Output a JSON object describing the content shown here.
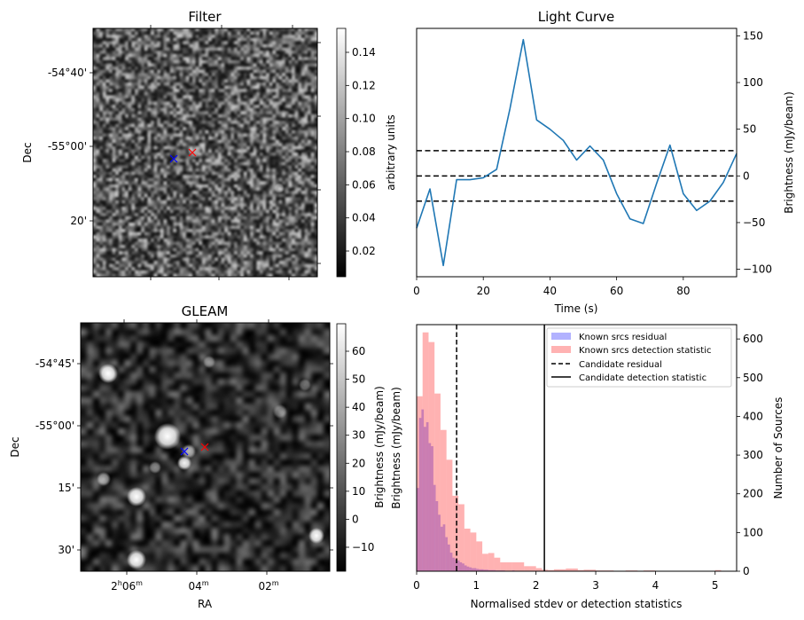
{
  "chart_data": [
    {
      "type": "heatmap",
      "title": "Filter",
      "ylabel": "Dec",
      "yticks": [
        "-54°40'",
        "-55°00'",
        "20'"
      ],
      "colorbar": {
        "label": "arbitrary units",
        "range": [
          0.005,
          0.153
        ],
        "ticks": [
          "0.02",
          "0.04",
          "0.06",
          "0.08",
          "0.10",
          "0.12",
          "0.14"
        ],
        "tick_values": [
          0.02,
          0.04,
          0.06,
          0.08,
          0.1,
          0.12,
          0.14
        ]
      },
      "markers": [
        {
          "color": "#0000ff",
          "symbol": "x"
        },
        {
          "color": "#ff0000",
          "symbol": "x"
        }
      ]
    },
    {
      "type": "line",
      "title": "Light Curve",
      "xlabel": "Time (s)",
      "ylabel": "Brightness (mJy/beam)",
      "xlim": [
        0,
        96
      ],
      "ylim": [
        -108,
        158
      ],
      "xticks": [
        "0",
        "20",
        "40",
        "60",
        "80"
      ],
      "xtick_values": [
        0,
        20,
        40,
        60,
        80
      ],
      "yticks": [
        "−100",
        "−50",
        "0",
        "50",
        "100",
        "150"
      ],
      "ytick_values": [
        -100,
        -50,
        0,
        50,
        100,
        150
      ],
      "x": [
        0,
        4,
        8,
        12,
        16,
        20,
        24,
        28,
        32,
        36,
        40,
        44,
        48,
        52,
        56,
        60,
        64,
        68,
        72,
        76,
        80,
        84,
        88,
        92,
        96
      ],
      "y": [
        -56,
        -14,
        -96,
        -4,
        -4,
        -2,
        7,
        72,
        146,
        60,
        50,
        38,
        17,
        32,
        17,
        -19,
        -46,
        -51,
        -8,
        33,
        -19,
        -37,
        -27,
        -7,
        24
      ],
      "series_color": "#1f77b4",
      "hlines": [
        27,
        0,
        -27
      ]
    },
    {
      "type": "heatmap",
      "title": "GLEAM",
      "xlabel": "RA",
      "ylabel": "Dec",
      "xticks": [
        {
          "h": "2",
          "hs": "h",
          "m": "06",
          "ms": "m"
        },
        {
          "h": "",
          "hs": "",
          "m": "04",
          "ms": "m"
        },
        {
          "h": "",
          "hs": "",
          "m": "02",
          "ms": "m"
        }
      ],
      "yticks": [
        "-54°45'",
        "-55°00'",
        "15'",
        "30'"
      ],
      "colorbar": {
        "label": "Brightness (mJy/beam)",
        "range": [
          -18.5,
          69.8
        ],
        "ticks": [
          "−10",
          "0",
          "10",
          "20",
          "30",
          "40",
          "50",
          "60"
        ],
        "tick_values": [
          -10,
          0,
          10,
          20,
          30,
          40,
          50,
          60
        ]
      },
      "markers": [
        {
          "color": "#0000ff",
          "symbol": "x"
        },
        {
          "color": "#ff0000",
          "symbol": "x"
        }
      ]
    },
    {
      "type": "bar",
      "subtype": "histogram",
      "xlabel": "Normalised stdev or detection statistics",
      "ylabel_left": "Brightness (mJy/beam)",
      "ylabel_right": "Number of Sources",
      "xlim": [
        0,
        5.36
      ],
      "ylim": [
        0,
        637
      ],
      "xticks": [
        "0",
        "1",
        "2",
        "3",
        "4",
        "5"
      ],
      "xtick_values": [
        0,
        1,
        2,
        3,
        4,
        5
      ],
      "yticks": [
        "0",
        "100",
        "200",
        "300",
        "400",
        "500",
        "600"
      ],
      "ytick_values": [
        0,
        100,
        200,
        300,
        400,
        500,
        600
      ],
      "series": [
        {
          "name": "Known srcs residual",
          "color": "#0000ff",
          "alpha": 0.3,
          "bin_width": 0.04,
          "values": [
            215,
            396,
            418,
            373,
            385,
            331,
            323,
            223,
            181,
            146,
            115,
            121,
            88,
            69,
            48,
            35,
            31,
            28,
            23,
            20,
            15,
            12,
            10,
            8,
            8,
            6,
            5,
            5,
            4,
            4,
            3,
            3,
            3,
            2,
            2,
            2,
            2,
            1,
            1,
            1,
            2,
            1,
            1,
            1,
            1,
            1,
            1,
            1,
            1,
            1,
            1,
            1,
            1,
            0
          ]
        },
        {
          "name": "Known srcs detection statistic",
          "color": "#ff0000",
          "alpha": 0.3,
          "bin_width": 0.1,
          "values": [
            452,
            617,
            592,
            459,
            365,
            288,
            195,
            173,
            110,
            100,
            77,
            45,
            47,
            35,
            23,
            23,
            23,
            23,
            13,
            13,
            8,
            4,
            3,
            5,
            5,
            7,
            7,
            3,
            4,
            4,
            2,
            2,
            2,
            1,
            1,
            2,
            2,
            1,
            2,
            2,
            1,
            0,
            1,
            0,
            1,
            0,
            0,
            0,
            0,
            0,
            3
          ]
        }
      ],
      "vlines": [
        {
          "name": "Candidate residual",
          "x": 0.67,
          "style": "dashed"
        },
        {
          "name": "Candidate detection statistic",
          "x": 2.14,
          "style": "solid"
        }
      ],
      "legend": {
        "placement": "top-right",
        "entries": [
          "Known srcs residual",
          "Known srcs detection statistic",
          "Candidate residual",
          "Candidate detection statistic"
        ]
      }
    }
  ]
}
